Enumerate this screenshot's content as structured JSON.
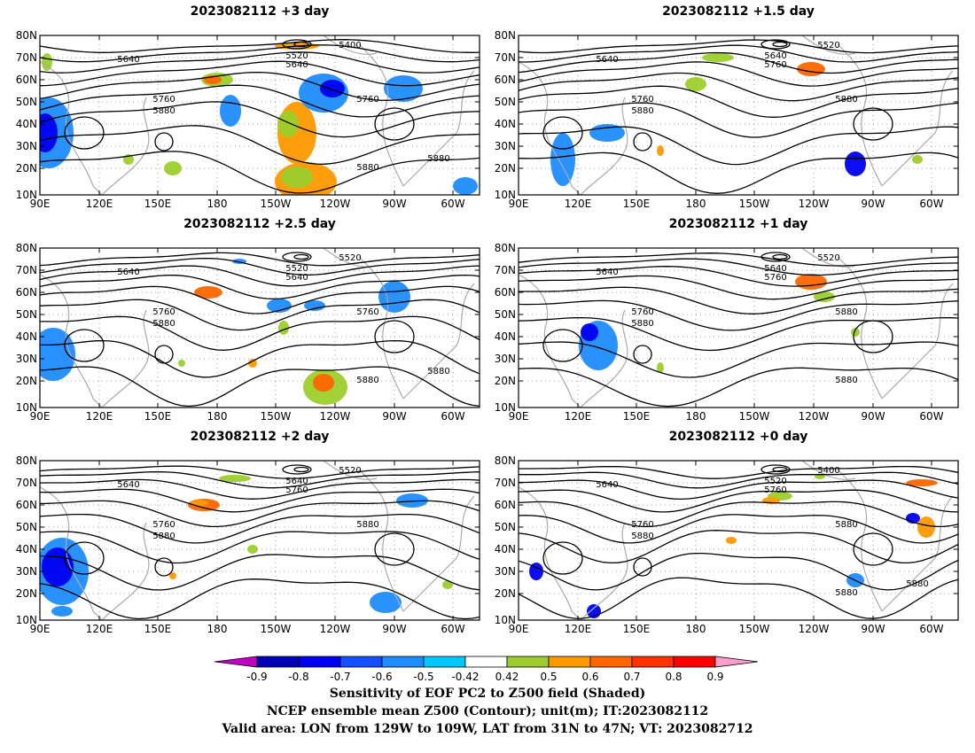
{
  "panels": [
    {
      "title": "2023082112 +3 day",
      "contour_labels": [
        "5400",
        "5520",
        "5640",
        "5640",
        "5760",
        "5760",
        "5880",
        "5880",
        "5880"
      ]
    },
    {
      "title": "2023082112 +1.5 day",
      "contour_labels": [
        "5520",
        "5640",
        "5640",
        "5760",
        "5760",
        "5880",
        "5880"
      ]
    },
    {
      "title": "2023082112 +2.5 day",
      "contour_labels": [
        "5520",
        "5520",
        "5640",
        "5640",
        "5760",
        "5760",
        "5880",
        "5880",
        "5880"
      ]
    },
    {
      "title": "2023082112 +1 day",
      "contour_labels": [
        "5520",
        "5640",
        "5640",
        "5760",
        "5760",
        "5880",
        "5880",
        "5880"
      ]
    },
    {
      "title": "2023082112 +2 day",
      "contour_labels": [
        "5520",
        "5640",
        "5640",
        "5760",
        "5760",
        "5880",
        "5880"
      ]
    },
    {
      "title": "2023082112 +0 day",
      "contour_labels": [
        "5400",
        "5520",
        "5640",
        "5760",
        "5760",
        "5880",
        "5880",
        "5880",
        "5880"
      ]
    }
  ],
  "axes": {
    "lat_labels": [
      "80N",
      "70N",
      "60N",
      "50N",
      "40N",
      "30N",
      "20N",
      "10N"
    ],
    "lon_labels": [
      "90E",
      "120E",
      "150E",
      "180",
      "150W",
      "120W",
      "90W",
      "60W"
    ]
  },
  "colorbar": {
    "ticks": [
      "-0.9",
      "-0.8",
      "-0.7",
      "-0.6",
      "-0.5",
      "-0.42",
      "0.42",
      "0.5",
      "0.6",
      "0.7",
      "0.8",
      "0.9"
    ],
    "colors": [
      "#c400c4",
      "#0000b4",
      "#0000f0",
      "#1450ff",
      "#1e8cff",
      "#00c8ff",
      "#ffffff",
      "#9ccd2c",
      "#ff9900",
      "#ff6600",
      "#ff3300",
      "#ff0000",
      "#ff9ecb"
    ]
  },
  "footer": {
    "line1": "Sensitivity of EOF PC2 to Z500 field (Shaded)",
    "line2": "NCEP ensemble mean Z500 (Contour); unit(m); IT:2023082112",
    "line3": "Valid area: LON from 129W to 109W, LAT from 31N to 47N; VT: 2023082712"
  }
}
